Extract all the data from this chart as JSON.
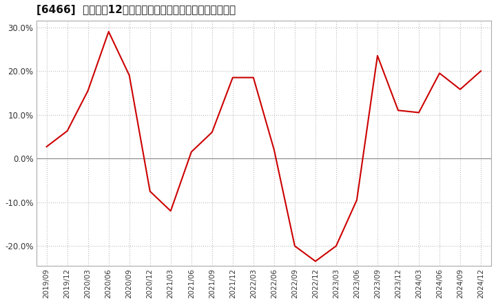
{
  "title": "[6466]  売上高の12か月移動合計の対前年同期増減率の推移",
  "title_fontsize": 11,
  "line_color": "#cc0000",
  "background_color": "#ffffff",
  "grid_color": "#bbbbbb",
  "ylim": [
    -0.245,
    0.315
  ],
  "yticks": [
    -0.2,
    -0.1,
    0.0,
    0.1,
    0.2,
    0.3
  ],
  "ytick_labels": [
    "-20.0%",
    "-10.0%",
    "0.0%",
    "10.0%",
    "20.0%",
    "30.0%"
  ],
  "x_labels": [
    "2019/09",
    "2019/12",
    "2020/03",
    "2020/06",
    "2020/09",
    "2020/12",
    "2021/03",
    "2021/06",
    "2021/09",
    "2021/12",
    "2022/03",
    "2022/06",
    "2022/09",
    "2022/12",
    "2023/03",
    "2023/06",
    "2023/09",
    "2023/12",
    "2024/03",
    "2024/06",
    "2024/09",
    "2024/12"
  ],
  "values": [
    0.027,
    0.063,
    0.155,
    0.29,
    0.19,
    -0.075,
    -0.12,
    0.015,
    0.06,
    0.185,
    0.185,
    0.02,
    -0.2,
    -0.235,
    -0.2,
    -0.095,
    0.235,
    0.11,
    0.105,
    0.195,
    0.158,
    0.2
  ]
}
